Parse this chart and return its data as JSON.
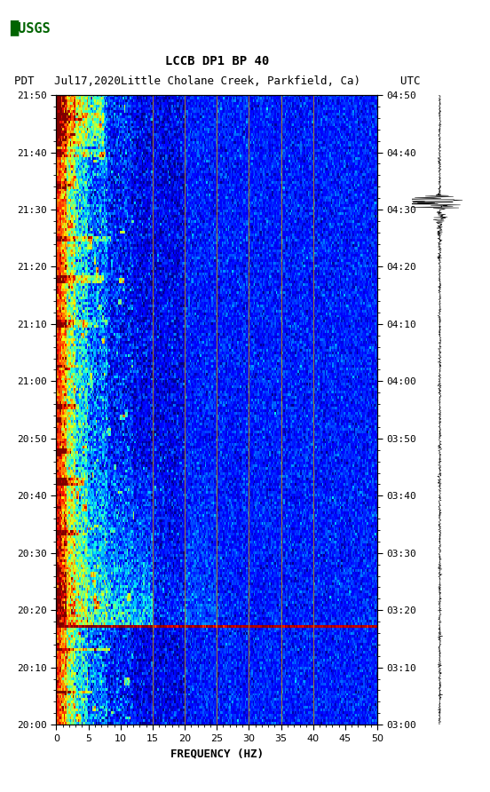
{
  "title_line1": "LCCB DP1 BP 40",
  "title_line2": "PDT   Jul17,2020Little Cholane Creek, Parkfield, Ca)      UTC",
  "xlabel": "FREQUENCY (HZ)",
  "freq_min": 0,
  "freq_max": 50,
  "freq_ticks": [
    0,
    5,
    10,
    15,
    20,
    25,
    30,
    35,
    40,
    45,
    50
  ],
  "time_labels_left": [
    "20:00",
    "20:10",
    "20:20",
    "20:30",
    "20:40",
    "20:50",
    "21:00",
    "21:10",
    "21:20",
    "21:30",
    "21:40",
    "21:50"
  ],
  "time_labels_right": [
    "03:00",
    "03:10",
    "03:20",
    "03:30",
    "03:40",
    "03:50",
    "04:00",
    "04:10",
    "04:20",
    "04:30",
    "04:40",
    "04:50"
  ],
  "n_time_steps": 240,
  "n_freq_steps": 250,
  "vertical_lines_freq": [
    15,
    20,
    25,
    30,
    35,
    40
  ],
  "fig_bg": "#ffffff",
  "font_family": "monospace",
  "font_size_title": 10,
  "font_size_labels": 9,
  "font_size_ticks": 8
}
